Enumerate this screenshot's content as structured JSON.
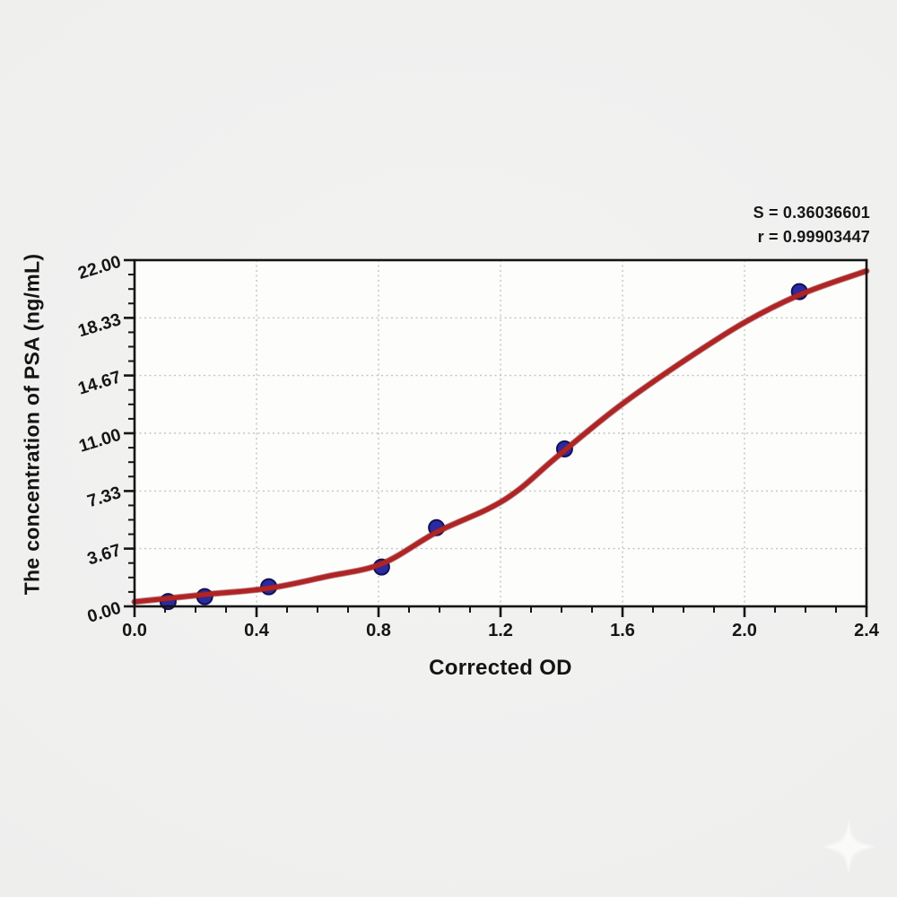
{
  "annotation": {
    "s_line": "S = 0.36036601",
    "r_line": "r = 0.99903447"
  },
  "chart_data": {
    "type": "scatter",
    "title": "",
    "xlabel": "Corrected OD",
    "ylabel": "The concentration of PSA (ng/mL)",
    "xlim": [
      0,
      2.4
    ],
    "ylim": [
      0,
      22
    ],
    "x_ticks": {
      "values": [
        0,
        0.4,
        0.8,
        1.2,
        1.6,
        2.0,
        2.4
      ],
      "labels": [
        "0.0",
        "0.4",
        "0.8",
        "1.2",
        "1.6",
        "2.0",
        "2.4"
      ],
      "minor_step": 0.1
    },
    "y_ticks": {
      "values": [
        0,
        3.67,
        7.33,
        11.0,
        14.67,
        18.33,
        22.0
      ],
      "labels": [
        "0.00",
        "3.67",
        "7.33",
        "11.00",
        "14.67",
        "18.33",
        "22.00"
      ],
      "minor_divisions": 4
    },
    "grid": {
      "show": true,
      "style": "dotted",
      "color": "#c3c3c1",
      "on_major_only": true
    },
    "legend": "none",
    "stats": {
      "S": "0.36036601",
      "r": "0.99903447"
    },
    "series": [
      {
        "name": "standard-points",
        "type": "scatter",
        "color": "#2a2aa3",
        "edge_color": "#12124f",
        "points": [
          [
            0.11,
            0.31
          ],
          [
            0.23,
            0.62
          ],
          [
            0.44,
            1.25
          ],
          [
            0.81,
            2.5
          ],
          [
            0.99,
            5.0
          ],
          [
            1.41,
            10.0
          ],
          [
            2.18,
            20.0
          ]
        ]
      },
      {
        "name": "4pl-fit-curve",
        "type": "line",
        "color": "#af2425",
        "points": [
          [
            0.0,
            0.29
          ],
          [
            0.23,
            0.75
          ],
          [
            0.44,
            1.15
          ],
          [
            0.63,
            1.9
          ],
          [
            0.81,
            2.7
          ],
          [
            0.99,
            4.71
          ],
          [
            1.16,
            6.2
          ],
          [
            1.26,
            7.41
          ],
          [
            1.38,
            9.42
          ],
          [
            1.58,
            12.58
          ],
          [
            1.79,
            15.45
          ],
          [
            2.0,
            18.04
          ],
          [
            2.19,
            19.87
          ],
          [
            2.4,
            21.31
          ]
        ]
      }
    ]
  },
  "watermark": {
    "icon": "sparkle-star"
  }
}
